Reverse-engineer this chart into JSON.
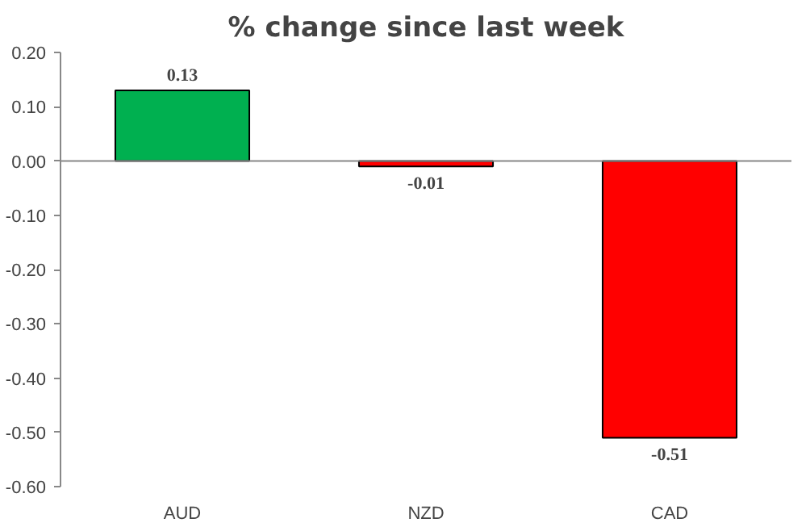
{
  "chart_data": {
    "type": "bar",
    "title": "% change since last week",
    "categories": [
      "AUD",
      "NZD",
      "CAD"
    ],
    "values": [
      0.13,
      -0.01,
      -0.51
    ],
    "colors": [
      "#00b050",
      "#ff0000",
      "#ff0000"
    ],
    "value_labels": [
      "0.13",
      "-0.01",
      "-0.51"
    ],
    "ylim": [
      -0.6,
      0.2
    ],
    "yticks": [
      {
        "value": -0.6,
        "label": "-0.60"
      },
      {
        "value": -0.5,
        "label": "-0.50"
      },
      {
        "value": -0.4,
        "label": "-0.40"
      },
      {
        "value": -0.3,
        "label": "-0.30"
      },
      {
        "value": -0.2,
        "label": "-0.20"
      },
      {
        "value": -0.1,
        "label": "-0.10"
      },
      {
        "value": 0,
        "label": "0.00"
      },
      {
        "value": 0.1,
        "label": "0.10"
      },
      {
        "value": 0.2,
        "label": "0.20"
      }
    ],
    "ref_lines": [
      {
        "axis": "y",
        "value": 0,
        "color": "#888888"
      }
    ],
    "grid": false
  }
}
